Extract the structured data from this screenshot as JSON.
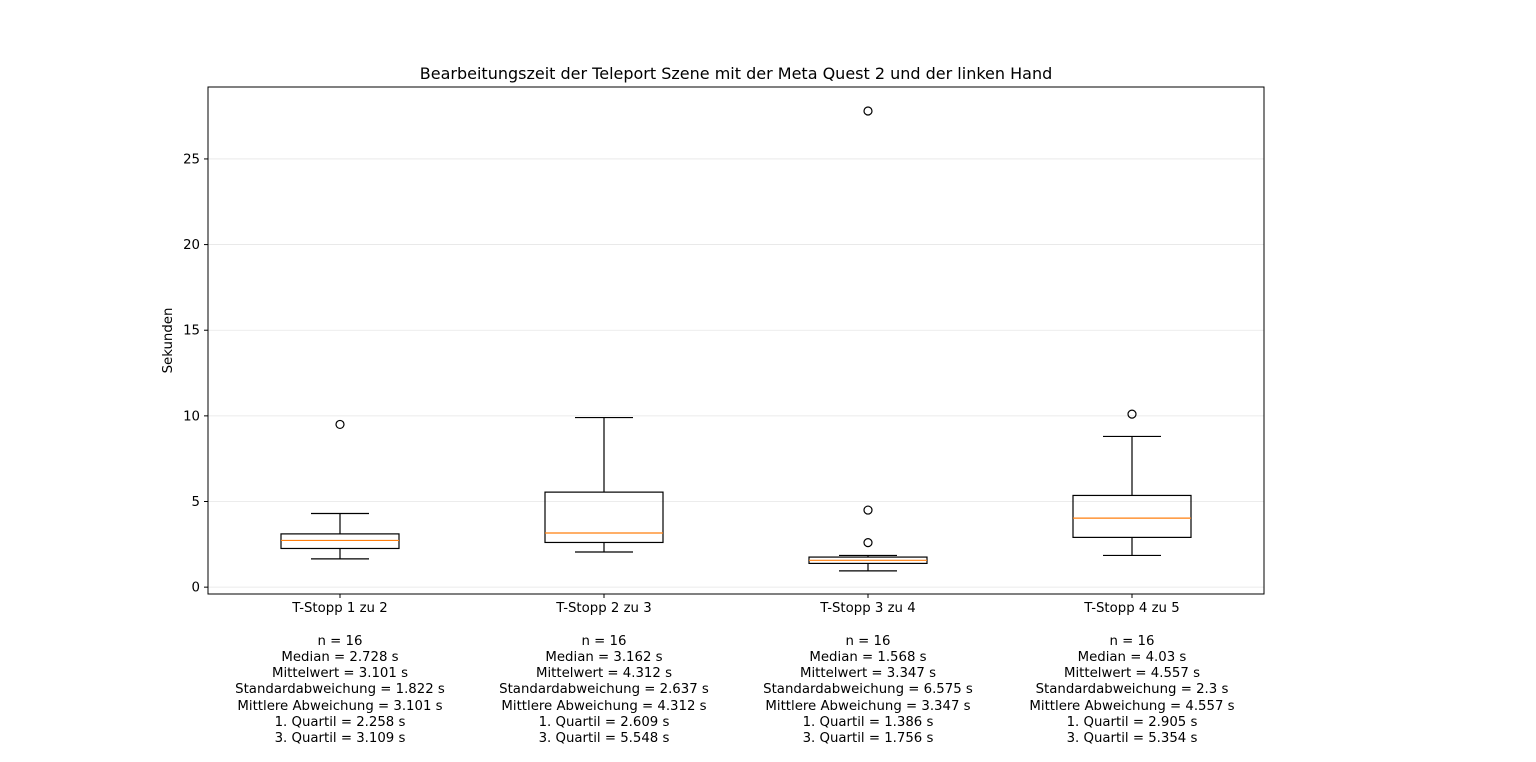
{
  "chart_data": {
    "type": "boxplot",
    "title": "Bearbeitungszeit der Teleport Szene mit der Meta Quest 2 und der linken Hand",
    "xlabel": "",
    "ylabel": "Sekunden",
    "ylim": [
      -0.4,
      29.2
    ],
    "yticks": [
      0,
      5,
      10,
      15,
      20,
      25
    ],
    "grid": "horizontal",
    "colors": {
      "box": "#000000",
      "median": "#ff7f0e",
      "grid": "#e6e6e6"
    },
    "categories": [
      {
        "label": "T-Stopp 1 zu 2",
        "whisker_low": 1.65,
        "q1": 2.258,
        "median": 2.728,
        "q3": 3.109,
        "whisker_high": 4.3,
        "outliers": [
          9.5
        ],
        "stats": [
          "n = 16",
          "Median = 2.728 s",
          "Mittelwert = 3.101 s",
          "Standardabweichung = 1.822 s",
          "Mittlere Abweichung = 3.101 s",
          "1. Quartil = 2.258 s",
          "3. Quartil = 3.109 s"
        ]
      },
      {
        "label": "T-Stopp 2 zu 3",
        "whisker_low": 2.05,
        "q1": 2.609,
        "median": 3.162,
        "q3": 5.548,
        "whisker_high": 9.9,
        "outliers": [],
        "stats": [
          "n = 16",
          "Median = 3.162 s",
          "Mittelwert = 4.312 s",
          "Standardabweichung = 2.637 s",
          "Mittlere Abweichung = 4.312 s",
          "1. Quartil = 2.609 s",
          "3. Quartil = 5.548 s"
        ]
      },
      {
        "label": "T-Stopp 3 zu 4",
        "whisker_low": 0.95,
        "q1": 1.386,
        "median": 1.568,
        "q3": 1.756,
        "whisker_high": 1.85,
        "outliers": [
          2.6,
          4.5,
          27.8
        ],
        "stats": [
          "n = 16",
          "Median = 1.568 s",
          "Mittelwert = 3.347 s",
          "Standardabweichung = 6.575 s",
          "Mittlere Abweichung = 3.347 s",
          "1. Quartil = 1.386 s",
          "3. Quartil = 1.756 s"
        ]
      },
      {
        "label": "T-Stopp 4 zu 5",
        "whisker_low": 1.85,
        "q1": 2.905,
        "median": 4.03,
        "q3": 5.354,
        "whisker_high": 8.8,
        "outliers": [
          10.1
        ],
        "stats": [
          "n = 16",
          "Median = 4.03 s",
          "Mittelwert = 4.557 s",
          "Standardabweichung = 2.3 s",
          "Mittlere Abweichung = 4.557 s",
          "1. Quartil = 2.905 s",
          "3. Quartil = 5.354 s"
        ]
      }
    ]
  }
}
